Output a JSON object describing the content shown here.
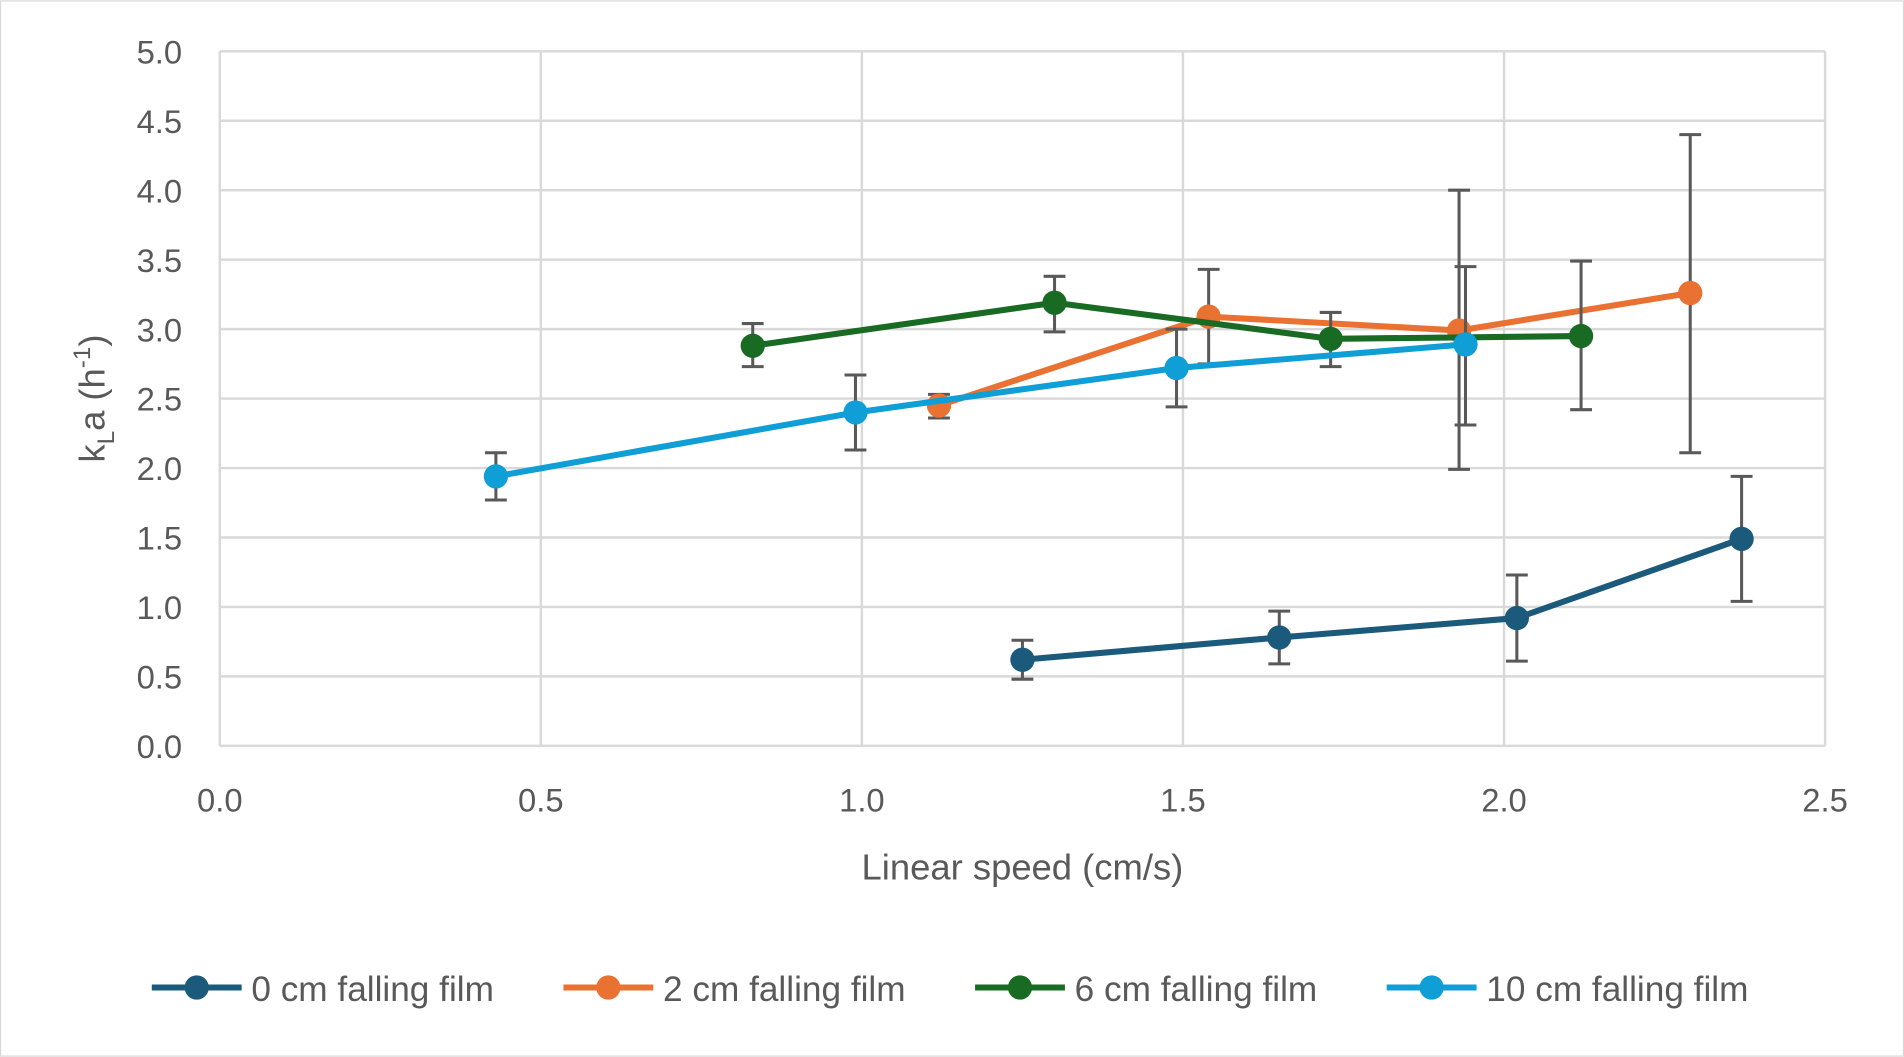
{
  "chart_data": {
    "type": "line",
    "title": "",
    "xlabel": "Linear speed (cm/s)",
    "ylabel": {
      "main": "k",
      "sub": "L",
      "mid": "a (h",
      "sup": "-1",
      "end": ")"
    },
    "xlim": [
      0,
      2.5
    ],
    "ylim": [
      0,
      5
    ],
    "xticks": [
      "0.0",
      "0.5",
      "1.0",
      "1.5",
      "2.0",
      "2.5"
    ],
    "yticks": [
      "0.0",
      "0.5",
      "1.0",
      "1.5",
      "2.0",
      "2.5",
      "3.0",
      "3.5",
      "4.0",
      "4.5",
      "5.0"
    ],
    "grid": true,
    "legend_position": "bottom",
    "error_bar_color": "#595959",
    "series": [
      {
        "name": "0 cm falling film",
        "color": "#1b5a7a",
        "x": [
          1.25,
          1.65,
          2.02,
          2.37
        ],
        "y": [
          0.62,
          0.78,
          0.92,
          1.49
        ],
        "err_low": [
          0.48,
          0.59,
          0.61,
          1.04
        ],
        "err_high": [
          0.76,
          0.97,
          1.23,
          1.94
        ]
      },
      {
        "name": "2 cm falling film",
        "color": "#e97132",
        "x": [
          1.12,
          1.54,
          1.93,
          2.29
        ],
        "y": [
          2.45,
          3.09,
          2.99,
          3.26
        ],
        "err_low": [
          2.36,
          2.75,
          1.99,
          2.11
        ],
        "err_high": [
          2.53,
          3.43,
          4.0,
          4.4
        ]
      },
      {
        "name": "6 cm falling film",
        "color": "#196b24",
        "x": [
          0.83,
          1.3,
          1.73,
          2.12
        ],
        "y": [
          2.88,
          3.19,
          2.93,
          2.95
        ],
        "err_low": [
          2.73,
          2.98,
          2.73,
          2.42
        ],
        "err_high": [
          3.04,
          3.38,
          3.12,
          3.49
        ]
      },
      {
        "name": "10 cm falling film",
        "color": "#0f9ed5",
        "x": [
          0.43,
          0.99,
          1.49,
          1.94
        ],
        "y": [
          1.94,
          2.4,
          2.72,
          2.89
        ],
        "err_low": [
          1.77,
          2.13,
          2.44,
          2.31
        ],
        "err_high": [
          2.11,
          2.67,
          3.0,
          3.45
        ]
      }
    ]
  }
}
